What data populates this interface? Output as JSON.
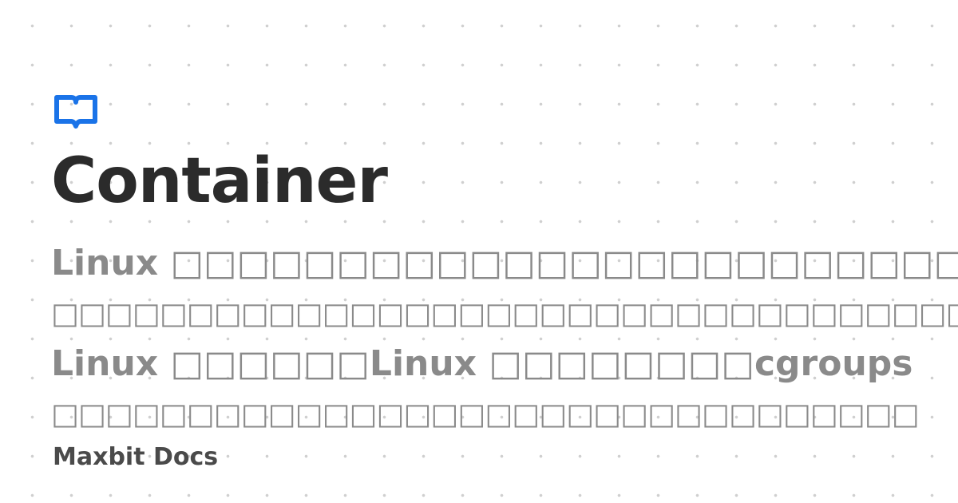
{
  "logo": {
    "icon": "open-book-icon",
    "color": "#1a73e8"
  },
  "title": "Container",
  "description": {
    "lines": [
      "Linux □□□□□□□□□□□□□□□□□□□□□□□□□□□□□□□Linux",
      "□□□□□□□□□□□□□□□□□□□□□□□□□□□□□□□□□□□□□□□□□□□□□□□□□",
      "Linux □□□□□□Linux □□□□□□□□cgroups",
      "□□□□□□□□□□□□□□□□□□□□□□□□□□□□□□□□"
    ]
  },
  "brand": "Maxbit Docs"
}
